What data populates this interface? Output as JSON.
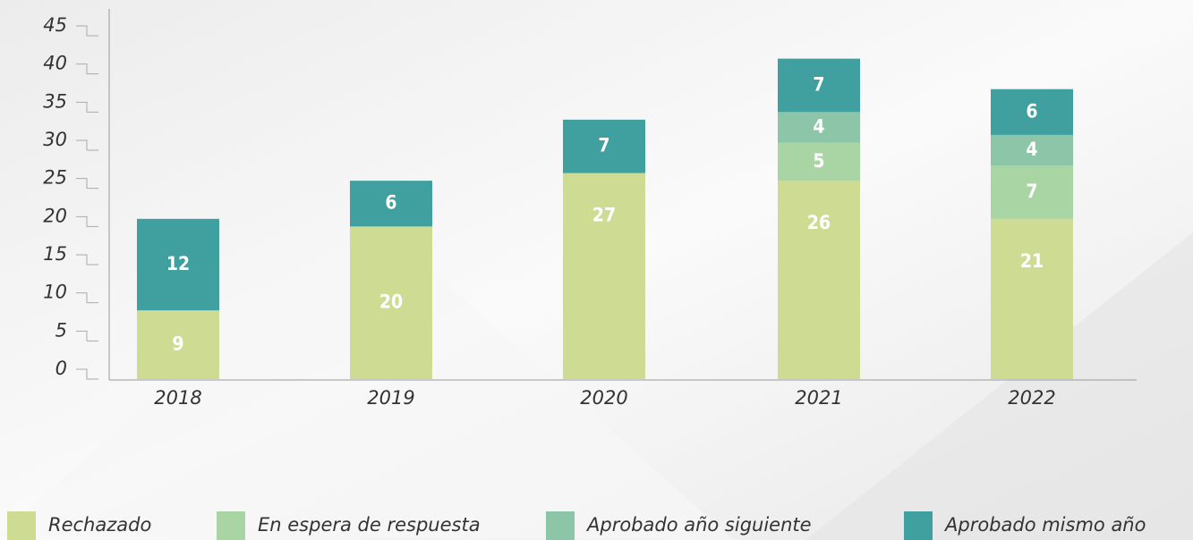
{
  "chart_data": {
    "type": "stacked_bar",
    "categories": [
      "2018",
      "2019",
      "2020",
      "2021",
      "2022"
    ],
    "series": [
      {
        "name": "Rechazado",
        "color": "#cddc92",
        "values": [
          9,
          20,
          27,
          26,
          21
        ]
      },
      {
        "name": "En espera de respuesta",
        "color": "#a9d4a3",
        "values": [
          null,
          null,
          null,
          5,
          7
        ]
      },
      {
        "name": "Aprobado año siguiente",
        "color": "#8cc5a8",
        "values": [
          null,
          null,
          null,
          4,
          4
        ]
      },
      {
        "name": "Aprobado mismo año",
        "color": "#40a09f",
        "values": [
          12,
          6,
          7,
          7,
          6
        ]
      }
    ],
    "ylim": [
      0,
      45
    ],
    "yticks": [
      0,
      5,
      10,
      15,
      20,
      25,
      30,
      35,
      40,
      45
    ]
  }
}
